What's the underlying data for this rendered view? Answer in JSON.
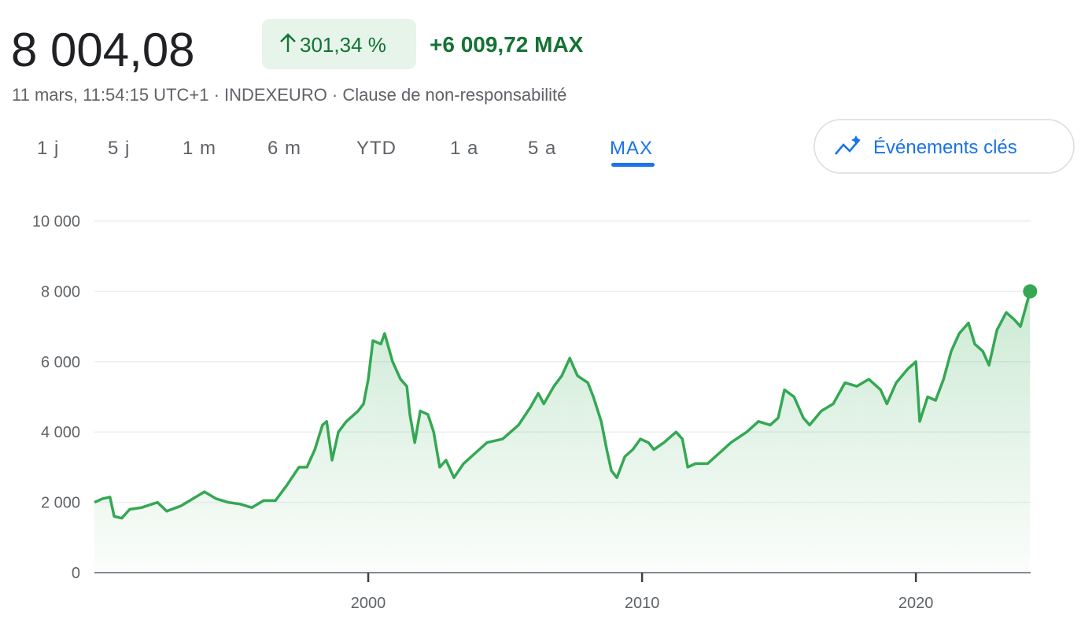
{
  "header": {
    "price": "8 004,08",
    "change_percent": "301,34 %",
    "change_absolute": "+6 009,72",
    "change_period": "MAX",
    "subtitle": "11 mars, 11:54:15 UTC+1 · INDEXEURO · Clause de non-responsabilité"
  },
  "ranges": {
    "items": [
      "1 j",
      "5 j",
      "1 m",
      "6 m",
      "YTD",
      "1 a",
      "5 a",
      "MAX"
    ],
    "active": 7
  },
  "key_events_button": "Événements clés",
  "chart_data": {
    "type": "line",
    "color": "#34a853",
    "grid": true,
    "xlim": [
      1990,
      2024.19
    ],
    "xticks": [
      2000,
      2010,
      2020
    ],
    "ylim": [
      0,
      10000
    ],
    "yticks": [
      0,
      {
        "value": 2000,
        "label": "2 000"
      },
      {
        "value": 4000,
        "label": "4 000"
      },
      {
        "value": 6000,
        "label": "6 000"
      },
      {
        "value": 8000,
        "label": "8 000"
      },
      {
        "value": 10000,
        "label": "10 000"
      }
    ],
    "x": [
      1990,
      1990.29,
      1990.57,
      1990.72,
      1991.0,
      1991.29,
      1991.72,
      1992.3,
      1992.64,
      1993.16,
      1993.59,
      1994.02,
      1994.45,
      1994.88,
      1995.32,
      1995.75,
      1996.18,
      1996.61,
      1997.04,
      1997.47,
      1997.76,
      1998.05,
      1998.33,
      1998.48,
      1998.68,
      1998.91,
      1999.2,
      1999.63,
      1999.83,
      2000.0,
      2000.17,
      2000.46,
      2000.6,
      2000.89,
      2001.18,
      2001.41,
      2001.52,
      2001.7,
      2001.9,
      2002.18,
      2002.39,
      2002.61,
      2002.84,
      2003.13,
      2003.48,
      2003.91,
      2004.34,
      2004.91,
      2005.49,
      2005.92,
      2006.21,
      2006.41,
      2006.78,
      2007.07,
      2007.36,
      2007.64,
      2008.02,
      2008.22,
      2008.51,
      2008.71,
      2008.88,
      2009.08,
      2009.37,
      2009.66,
      2009.94,
      2010.23,
      2010.43,
      2010.8,
      2011.24,
      2011.47,
      2011.67,
      2011.95,
      2012.39,
      2012.82,
      2013.25,
      2013.82,
      2014.25,
      2014.68,
      2014.97,
      2015.2,
      2015.55,
      2015.89,
      2016.12,
      2016.55,
      2016.98,
      2017.41,
      2017.84,
      2018.28,
      2018.71,
      2018.94,
      2019.28,
      2019.71,
      2020.0,
      2020.14,
      2020.43,
      2020.72,
      2021.01,
      2021.29,
      2021.58,
      2021.92,
      2022.15,
      2022.44,
      2022.67,
      2022.96,
      2023.3,
      2023.59,
      2023.82,
      2024.17
    ],
    "values": [
      2000,
      2100,
      2150,
      1600,
      1550,
      1800,
      1850,
      2000,
      1750,
      1900,
      2100,
      2300,
      2100,
      2000,
      1950,
      1850,
      2050,
      2050,
      2500,
      3000,
      3000,
      3500,
      4200,
      4300,
      3200,
      4000,
      4300,
      4600,
      4800,
      5500,
      6600,
      6500,
      6800,
      6000,
      5500,
      5300,
      4500,
      3700,
      4600,
      4500,
      4000,
      3000,
      3200,
      2700,
      3100,
      3400,
      3700,
      3800,
      4200,
      4700,
      5100,
      4800,
      5300,
      5600,
      6100,
      5600,
      5400,
      5000,
      4300,
      3500,
      2900,
      2700,
      3300,
      3500,
      3800,
      3700,
      3500,
      3700,
      4000,
      3800,
      3000,
      3100,
      3100,
      3400,
      3700,
      4000,
      4300,
      4200,
      4400,
      5200,
      5000,
      4400,
      4200,
      4600,
      4800,
      5400,
      5300,
      5500,
      5200,
      4800,
      5400,
      5800,
      6000,
      4300,
      5000,
      4900,
      5500,
      6300,
      6800,
      7100,
      6500,
      6300,
      5900,
      6900,
      7400,
      7200,
      7000,
      8000
    ]
  }
}
